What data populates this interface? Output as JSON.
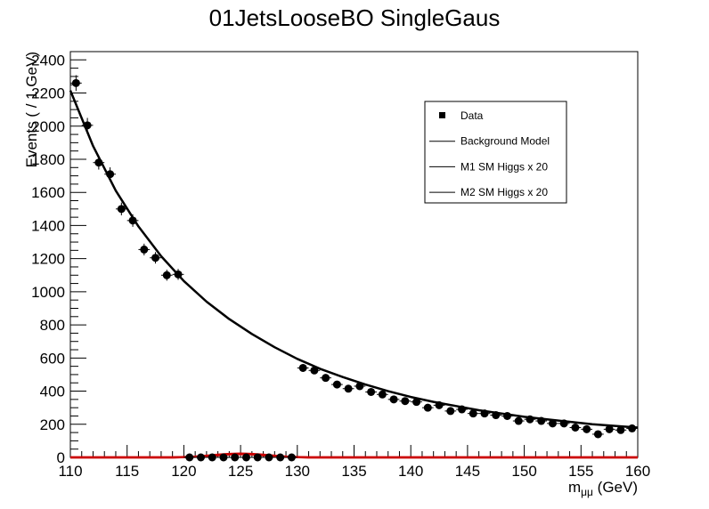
{
  "chart_data": {
    "type": "scatter",
    "title": "01JetsLooseBO SingleGaus",
    "xlabel": "m",
    "xlabel_sub": "μμ",
    "xlabel_unit": " (GeV)",
    "ylabel": "Events ( / 1 GeV)",
    "xlim": [
      110,
      160
    ],
    "ylim": [
      0,
      2450
    ],
    "x_ticks": [
      110,
      115,
      120,
      125,
      130,
      135,
      140,
      145,
      150,
      155,
      160
    ],
    "y_ticks": [
      0,
      200,
      400,
      600,
      800,
      1000,
      1200,
      1400,
      1600,
      1800,
      2000,
      2200,
      2400
    ],
    "grid": false,
    "legend_position": "top-right",
    "legend": [
      {
        "label": "Data",
        "marker": "square",
        "color": "#000000"
      },
      {
        "label": "Background Model",
        "marker": "line",
        "color": "#000000"
      },
      {
        "label": "M1 SM Higgs x 20",
        "marker": "line",
        "color": "#000000"
      },
      {
        "label": "M2 SM Higgs x 20",
        "marker": "line",
        "color": "#000000"
      }
    ],
    "series": [
      {
        "name": "Data",
        "kind": "points",
        "color": "#000000",
        "points": [
          [
            110.5,
            2260
          ],
          [
            111.5,
            2005
          ],
          [
            112.5,
            1780
          ],
          [
            113.5,
            1710
          ],
          [
            114.5,
            1500
          ],
          [
            115.5,
            1430
          ],
          [
            116.5,
            1255
          ],
          [
            117.5,
            1205
          ],
          [
            118.5,
            1100
          ],
          [
            119.5,
            1105
          ],
          [
            120.5,
            0
          ],
          [
            121.5,
            0
          ],
          [
            122.5,
            0
          ],
          [
            123.5,
            0
          ],
          [
            124.5,
            0
          ],
          [
            125.5,
            0
          ],
          [
            126.5,
            0
          ],
          [
            127.5,
            0
          ],
          [
            128.5,
            0
          ],
          [
            129.5,
            0
          ],
          [
            130.5,
            540
          ],
          [
            131.5,
            525
          ],
          [
            132.5,
            480
          ],
          [
            133.5,
            440
          ],
          [
            134.5,
            415
          ],
          [
            135.5,
            430
          ],
          [
            136.5,
            395
          ],
          [
            137.5,
            380
          ],
          [
            138.5,
            350
          ],
          [
            139.5,
            340
          ],
          [
            140.5,
            335
          ],
          [
            141.5,
            300
          ],
          [
            142.5,
            315
          ],
          [
            143.5,
            280
          ],
          [
            144.5,
            290
          ],
          [
            145.5,
            265
          ],
          [
            146.5,
            265
          ],
          [
            147.5,
            255
          ],
          [
            148.5,
            250
          ],
          [
            149.5,
            220
          ],
          [
            150.5,
            230
          ],
          [
            151.5,
            220
          ],
          [
            152.5,
            205
          ],
          [
            153.5,
            205
          ],
          [
            154.5,
            180
          ],
          [
            155.5,
            170
          ],
          [
            156.5,
            140
          ],
          [
            157.5,
            170
          ],
          [
            158.5,
            165
          ],
          [
            159.5,
            175
          ]
        ]
      },
      {
        "name": "Background Model",
        "kind": "line",
        "color": "#000000",
        "points": [
          [
            110,
            2215
          ],
          [
            112,
            1880
          ],
          [
            114,
            1610
          ],
          [
            116,
            1395
          ],
          [
            118,
            1215
          ],
          [
            120,
            1065
          ],
          [
            122,
            940
          ],
          [
            124,
            835
          ],
          [
            126,
            745
          ],
          [
            128,
            665
          ],
          [
            130,
            595
          ],
          [
            132,
            535
          ],
          [
            134,
            485
          ],
          [
            136,
            440
          ],
          [
            138,
            400
          ],
          [
            140,
            365
          ],
          [
            142,
            335
          ],
          [
            144,
            310
          ],
          [
            146,
            285
          ],
          [
            148,
            265
          ],
          [
            150,
            245
          ],
          [
            152,
            230
          ],
          [
            154,
            215
          ],
          [
            156,
            200
          ],
          [
            158,
            190
          ],
          [
            160,
            180
          ]
        ]
      },
      {
        "name": "M1 SM Higgs x 20",
        "kind": "line",
        "color": "#cc0000",
        "points": [
          [
            110,
            0
          ],
          [
            119,
            0
          ],
          [
            120,
            1
          ],
          [
            121,
            3
          ],
          [
            122,
            7
          ],
          [
            123,
            13
          ],
          [
            124,
            18
          ],
          [
            125,
            20
          ],
          [
            126,
            18
          ],
          [
            127,
            13
          ],
          [
            128,
            7
          ],
          [
            129,
            3
          ],
          [
            130,
            1
          ],
          [
            131,
            0
          ],
          [
            160,
            0
          ]
        ]
      },
      {
        "name": "M2 SM Higgs x 20",
        "kind": "line",
        "color": "#cc0000",
        "points": [
          [
            110,
            0
          ],
          [
            119,
            0
          ],
          [
            120,
            2
          ],
          [
            121,
            5
          ],
          [
            122,
            10
          ],
          [
            123,
            16
          ],
          [
            124,
            21
          ],
          [
            125,
            23
          ],
          [
            126,
            21
          ],
          [
            127,
            16
          ],
          [
            128,
            10
          ],
          [
            129,
            5
          ],
          [
            130,
            2
          ],
          [
            131,
            0
          ],
          [
            160,
            0
          ]
        ]
      }
    ]
  }
}
